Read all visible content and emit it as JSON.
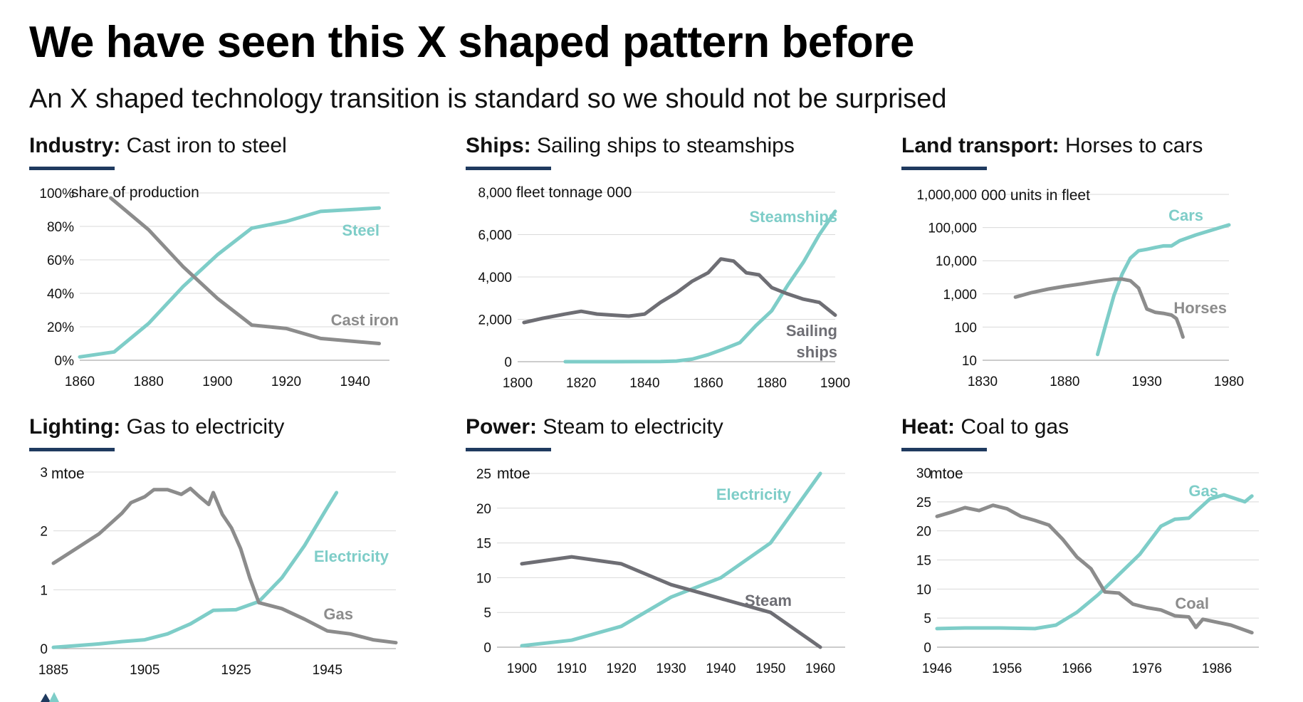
{
  "title": "We have seen this X shaped pattern before",
  "subtitle": "An X shaped technology transition is standard so we should not be surprised",
  "colors": {
    "new": "#7ecdc8",
    "old": "#8c8c8c",
    "old_dark": "#6e6e74",
    "rule": "#1f3a5f",
    "grid": "#d9d9d9"
  },
  "chart_data": [
    {
      "id": "industry",
      "type": "line",
      "sector": "Industry:",
      "heading": " Cast iron to steel",
      "unit": "share of production",
      "xlim": [
        1860,
        1950
      ],
      "ylim": [
        0,
        100
      ],
      "xticks": [
        1860,
        1880,
        1900,
        1920,
        1940
      ],
      "yticks": [
        0,
        20,
        40,
        60,
        80,
        100
      ],
      "ytick_labels": [
        "0%",
        "20%",
        "40%",
        "60%",
        "80%",
        "100%"
      ],
      "series": [
        {
          "name": "Steel",
          "role": "new",
          "x": [
            1860,
            1870,
            1880,
            1890,
            1900,
            1910,
            1920,
            1930,
            1947
          ],
          "y": [
            2,
            5,
            22,
            44,
            63,
            79,
            83,
            89,
            91
          ]
        },
        {
          "name": "Cast iron",
          "role": "old",
          "x": [
            1869,
            1880,
            1890,
            1900,
            1910,
            1920,
            1930,
            1947
          ],
          "y": [
            97,
            78,
            56,
            37,
            21,
            19,
            13,
            10
          ]
        }
      ]
    },
    {
      "id": "ships",
      "type": "line",
      "sector": "Ships:",
      "heading": " Sailing ships to steamships",
      "unit": "fleet tonnage 000",
      "xlim": [
        1800,
        1900
      ],
      "ylim": [
        0,
        8000
      ],
      "xticks": [
        1800,
        1820,
        1840,
        1860,
        1880,
        1900
      ],
      "yticks": [
        0,
        2000,
        4000,
        6000,
        8000
      ],
      "ytick_labels": [
        "0",
        "2,000",
        "4,000",
        "6,000",
        "8,000"
      ],
      "series": [
        {
          "name": "Steamships",
          "role": "new",
          "x": [
            1815,
            1830,
            1845,
            1850,
            1855,
            1860,
            1865,
            1870,
            1875,
            1880,
            1885,
            1890,
            1895,
            1900
          ],
          "y": [
            0,
            0,
            10,
            30,
            120,
            330,
            600,
            900,
            1700,
            2400,
            3600,
            4700,
            6000,
            7100
          ]
        },
        {
          "name": "Sailing\nships",
          "role": "old_dark",
          "x": [
            1802,
            1808,
            1815,
            1820,
            1825,
            1830,
            1835,
            1840,
            1845,
            1850,
            1855,
            1860,
            1864,
            1868,
            1872,
            1876,
            1880,
            1885,
            1890,
            1895,
            1900
          ],
          "y": [
            1850,
            2050,
            2250,
            2380,
            2250,
            2200,
            2150,
            2250,
            2800,
            3250,
            3800,
            4200,
            4850,
            4750,
            4200,
            4100,
            3500,
            3200,
            2950,
            2800,
            2200
          ]
        }
      ]
    },
    {
      "id": "land",
      "type": "line",
      "sector": "Land transport:",
      "heading": " Horses to cars",
      "unit": "000 units in fleet",
      "yscale": "log",
      "xlim": [
        1830,
        1980
      ],
      "ylim": [
        10,
        1000000
      ],
      "xticks": [
        1830,
        1880,
        1930,
        1980
      ],
      "yticks": [
        10,
        100,
        1000,
        10000,
        100000,
        1000000
      ],
      "ytick_labels": [
        "10",
        "100",
        "1,000",
        "10,000",
        "100,000",
        "1,000,000"
      ],
      "series": [
        {
          "name": "Cars",
          "role": "new",
          "x": [
            1900,
            1905,
            1910,
            1915,
            1920,
            1925,
            1930,
            1935,
            1940,
            1945,
            1950,
            1960,
            1970,
            1980
          ],
          "y": [
            15,
            120,
            900,
            4000,
            12000,
            20000,
            22000,
            25000,
            28000,
            28000,
            40000,
            60000,
            85000,
            120000
          ]
        },
        {
          "name": "Horses",
          "role": "old",
          "x": [
            1850,
            1860,
            1870,
            1880,
            1890,
            1900,
            1910,
            1915,
            1920,
            1925,
            1930,
            1935,
            1940,
            1945,
            1948,
            1950,
            1952
          ],
          "y": [
            800,
            1100,
            1400,
            1700,
            2000,
            2400,
            2800,
            2800,
            2500,
            1500,
            350,
            280,
            260,
            230,
            180,
            100,
            50
          ]
        }
      ]
    },
    {
      "id": "lighting",
      "type": "line",
      "sector": "Lighting:",
      "heading": " Gas to electricity",
      "unit": "mtoe",
      "xlim": [
        1885,
        1960
      ],
      "ylim": [
        0,
        3
      ],
      "xticks": [
        1885,
        1905,
        1925,
        1945
      ],
      "yticks": [
        0,
        1,
        2,
        3
      ],
      "ytick_labels": [
        "0",
        "1",
        "2",
        "3"
      ],
      "series": [
        {
          "name": "Electricity",
          "role": "new",
          "x": [
            1885,
            1890,
            1895,
            1900,
            1905,
            1910,
            1915,
            1920,
            1925,
            1930,
            1935,
            1940,
            1945,
            1947
          ],
          "y": [
            0.02,
            0.05,
            0.08,
            0.12,
            0.15,
            0.25,
            0.42,
            0.65,
            0.66,
            0.8,
            1.2,
            1.75,
            2.4,
            2.65
          ]
        },
        {
          "name": "Gas",
          "role": "old",
          "x": [
            1885,
            1890,
            1895,
            1900,
            1902,
            1905,
            1907,
            1910,
            1913,
            1915,
            1917,
            1919,
            1920,
            1922,
            1924,
            1926,
            1928,
            1930,
            1935,
            1940,
            1945,
            1950,
            1955,
            1960
          ],
          "y": [
            1.45,
            1.7,
            1.95,
            2.3,
            2.48,
            2.58,
            2.7,
            2.7,
            2.62,
            2.72,
            2.58,
            2.45,
            2.65,
            2.28,
            2.05,
            1.7,
            1.2,
            0.78,
            0.68,
            0.5,
            0.3,
            0.25,
            0.15,
            0.1
          ]
        }
      ]
    },
    {
      "id": "power",
      "type": "line",
      "sector": "Power:",
      "heading": " Steam to electricity",
      "unit": "mtoe",
      "xlim": [
        1895,
        1965
      ],
      "ylim": [
        0,
        25
      ],
      "xticks": [
        1900,
        1910,
        1920,
        1930,
        1940,
        1950,
        1960
      ],
      "yticks": [
        0,
        5,
        10,
        15,
        20,
        25
      ],
      "ytick_labels": [
        "0",
        "5",
        "10",
        "15",
        "20",
        "25"
      ],
      "series": [
        {
          "name": "Electricity",
          "role": "new",
          "x": [
            1900,
            1910,
            1920,
            1930,
            1940,
            1950,
            1960
          ],
          "y": [
            0.2,
            1,
            3,
            7.2,
            10,
            15,
            25
          ]
        },
        {
          "name": "Steam",
          "role": "old_dark",
          "x": [
            1900,
            1910,
            1920,
            1930,
            1940,
            1950,
            1960
          ],
          "y": [
            12,
            13,
            12,
            9,
            7,
            5,
            0
          ]
        }
      ]
    },
    {
      "id": "heat",
      "type": "line",
      "sector": "Heat:",
      "heading": " Coal to gas",
      "unit": "mtoe",
      "xlim": [
        1946,
        1992
      ],
      "ylim": [
        0,
        30
      ],
      "xticks": [
        1946,
        1956,
        1966,
        1976,
        1986
      ],
      "yticks": [
        0,
        5,
        10,
        15,
        20,
        25,
        30
      ],
      "ytick_labels": [
        "0",
        "5",
        "10",
        "15",
        "20",
        "25",
        "30"
      ],
      "series": [
        {
          "name": "Gas",
          "role": "new",
          "x": [
            1946,
            1950,
            1955,
            1960,
            1963,
            1966,
            1969,
            1972,
            1975,
            1978,
            1980,
            1982,
            1985,
            1987,
            1988,
            1990,
            1991
          ],
          "y": [
            3.2,
            3.3,
            3.3,
            3.2,
            3.8,
            6,
            9,
            12.5,
            16,
            20.8,
            22,
            22.2,
            25.5,
            26.2,
            25.8,
            25,
            26
          ]
        },
        {
          "name": "Coal",
          "role": "old",
          "x": [
            1946,
            1948,
            1950,
            1952,
            1954,
            1956,
            1958,
            1960,
            1962,
            1964,
            1966,
            1968,
            1970,
            1972,
            1974,
            1976,
            1978,
            1980,
            1982,
            1983,
            1984,
            1986,
            1988,
            1991
          ],
          "y": [
            22.5,
            23.2,
            24,
            23.5,
            24.4,
            23.8,
            22.5,
            21.8,
            21,
            18.5,
            15.5,
            13.5,
            9.5,
            9.3,
            7.4,
            6.8,
            6.4,
            5.4,
            5.2,
            3.4,
            4.8,
            4.3,
            3.8,
            2.5
          ]
        }
      ]
    }
  ]
}
